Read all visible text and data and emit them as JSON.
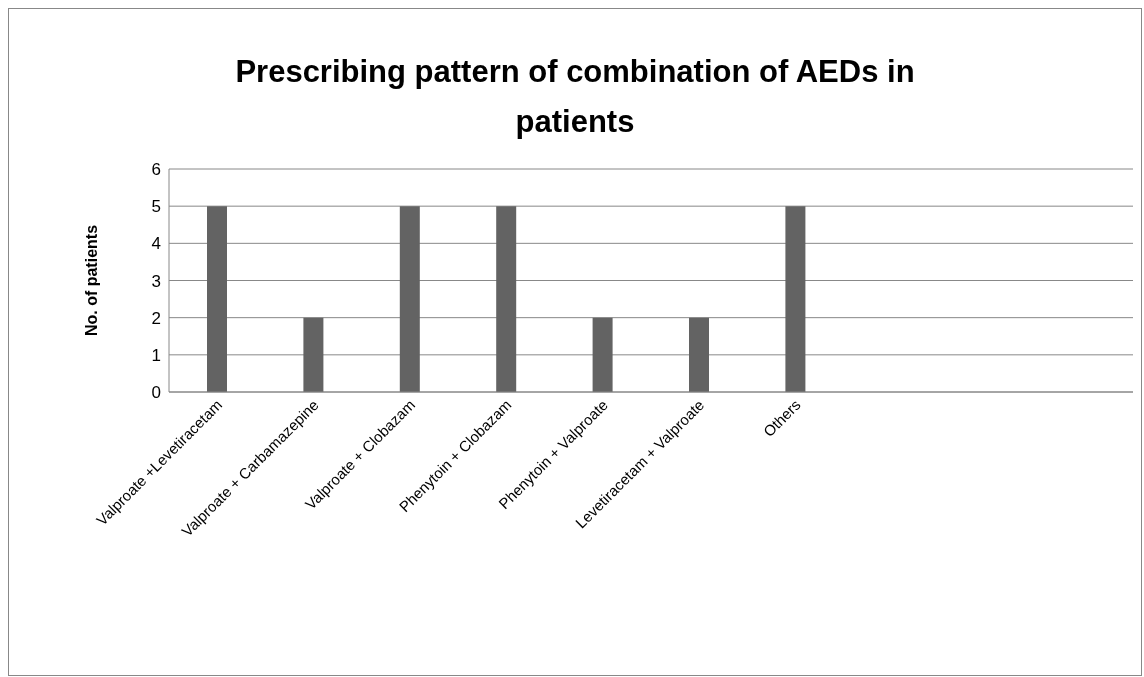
{
  "chart_data": {
    "type": "bar",
    "title": "Prescribing pattern of combination of AEDs in  patients",
    "ylabel": "No. of patients",
    "categories": [
      "Valproate +Levetiracetam",
      "Valproate + Carbamazepine",
      "Valproate + Clobazam",
      "Phenytoin + Clobazam",
      "Phenytoin + Valproate",
      "Levetiracetam + Valproate",
      "Others",
      null,
      null,
      null
    ],
    "values": [
      5,
      2,
      5,
      5,
      2,
      2,
      5,
      null,
      null,
      null
    ],
    "color": "#636363",
    "ylim": [
      0,
      6
    ],
    "yticks": [
      0,
      1,
      2,
      3,
      4,
      5,
      6
    ],
    "grid": "y",
    "legend": false
  }
}
